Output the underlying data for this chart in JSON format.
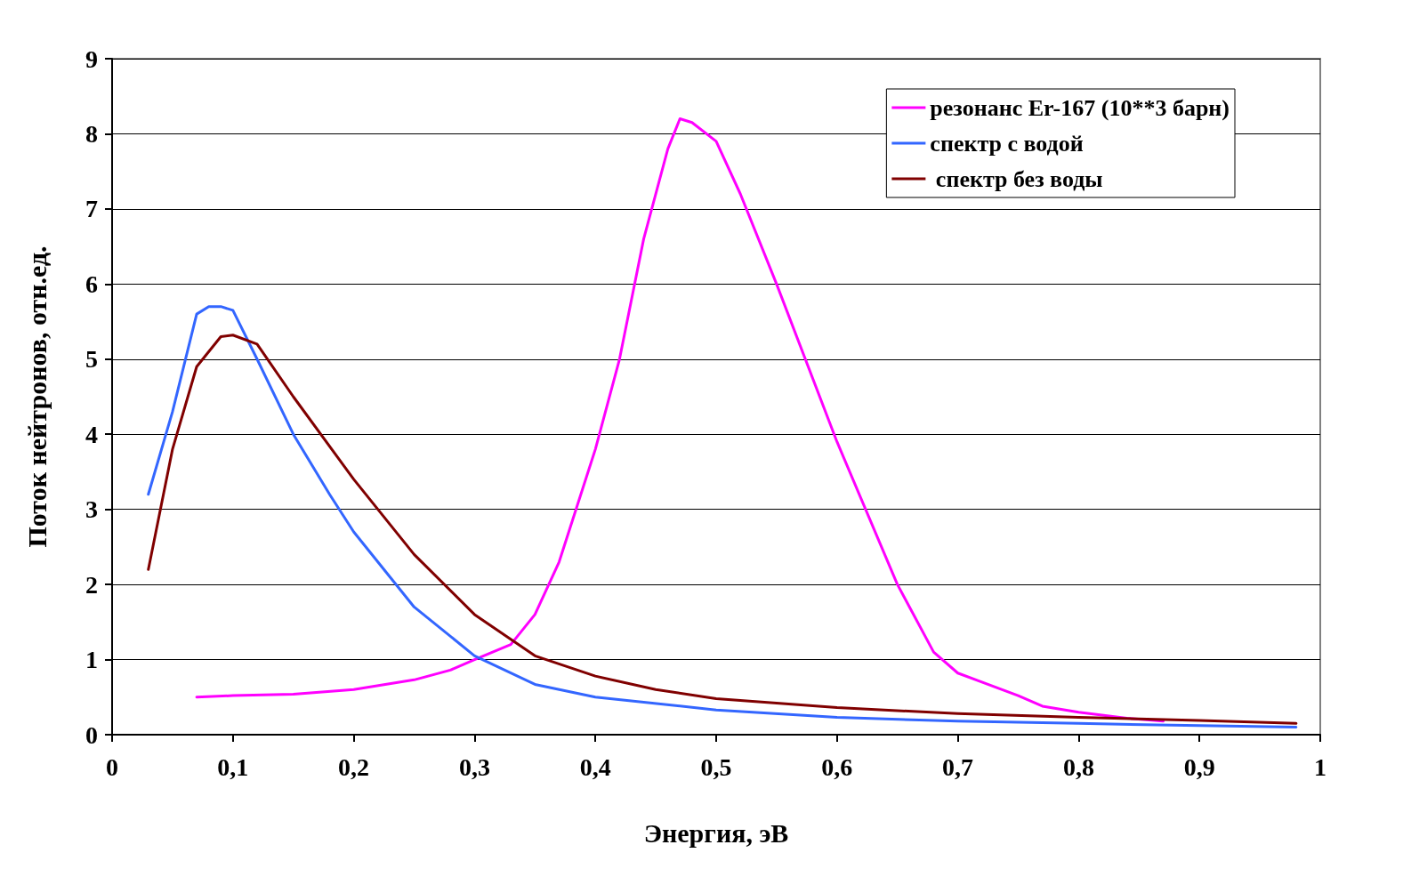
{
  "chart_data": {
    "type": "line",
    "xlabel": "Энергия, эВ",
    "ylabel": "Поток нейтронов, отн.ед.",
    "xlim": [
      0,
      1
    ],
    "xticks": [
      0,
      {
        "value": 0.1,
        "label": "0,1"
      },
      {
        "value": 0.2,
        "label": "0,2"
      },
      {
        "value": 0.3,
        "label": "0,3"
      },
      {
        "value": 0.4,
        "label": "0,4"
      },
      {
        "value": 0.5,
        "label": "0,5"
      },
      {
        "value": 0.6,
        "label": "0,6"
      },
      {
        "value": 0.7,
        "label": "0,7"
      },
      {
        "value": 0.8,
        "label": "0,8"
      },
      {
        "value": 0.9,
        "label": "0,9"
      },
      1
    ],
    "ylim": [
      0,
      9
    ],
    "yticks": [
      0,
      1,
      2,
      3,
      4,
      5,
      6,
      7,
      8,
      9
    ],
    "grid": "y",
    "legend": "top right",
    "marker": "none",
    "line_style": "solid",
    "series": [
      {
        "name": "резонанс Er-167 (10**3 барн)",
        "color": "#ff00ff",
        "x": [
          0.07,
          0.1,
          0.15,
          0.2,
          0.25,
          0.28,
          0.3,
          0.33,
          0.35,
          0.37,
          0.4,
          0.42,
          0.44,
          0.46,
          0.47,
          0.48,
          0.5,
          0.52,
          0.55,
          0.6,
          0.65,
          0.68,
          0.7,
          0.75,
          0.77,
          0.8,
          0.84,
          0.87
        ],
        "values": [
          0.5,
          0.52,
          0.54,
          0.6,
          0.73,
          0.86,
          1.0,
          1.2,
          1.6,
          2.3,
          3.8,
          5.0,
          6.6,
          7.8,
          8.2,
          8.15,
          7.9,
          7.2,
          6.0,
          3.9,
          2.0,
          1.1,
          0.82,
          0.52,
          0.38,
          0.3,
          0.22,
          0.18
        ]
      },
      {
        "name": "спектр с водой",
        "color": "#3366ff",
        "x": [
          0.03,
          0.05,
          0.07,
          0.08,
          0.09,
          0.1,
          0.12,
          0.15,
          0.18,
          0.2,
          0.25,
          0.3,
          0.35,
          0.4,
          0.5,
          0.6,
          0.7,
          0.8,
          0.9,
          0.98
        ],
        "values": [
          3.2,
          4.3,
          5.6,
          5.7,
          5.7,
          5.65,
          5.0,
          4.0,
          3.2,
          2.7,
          1.7,
          1.05,
          0.67,
          0.5,
          0.33,
          0.23,
          0.18,
          0.15,
          0.12,
          0.1
        ]
      },
      {
        "name": " спектр без воды",
        "color": "#800000",
        "x": [
          0.03,
          0.05,
          0.07,
          0.09,
          0.1,
          0.12,
          0.15,
          0.2,
          0.25,
          0.3,
          0.35,
          0.4,
          0.45,
          0.5,
          0.6,
          0.7,
          0.8,
          0.9,
          0.98
        ],
        "values": [
          2.2,
          3.8,
          4.9,
          5.3,
          5.32,
          5.2,
          4.5,
          3.4,
          2.4,
          1.6,
          1.05,
          0.78,
          0.6,
          0.48,
          0.36,
          0.28,
          0.23,
          0.19,
          0.15
        ]
      }
    ]
  }
}
